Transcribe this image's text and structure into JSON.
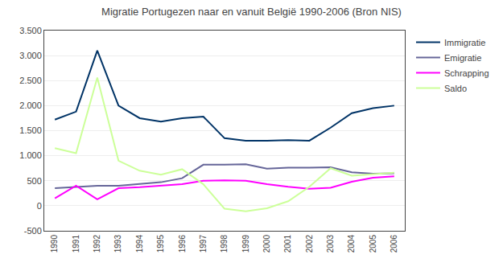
{
  "chart_data": {
    "type": "line",
    "title": "Migratie Portugezen naar en vanuit België 1990-2006 (Bron NIS)",
    "x": [
      1990,
      1991,
      1992,
      1993,
      1994,
      1995,
      1996,
      1997,
      1998,
      1999,
      2000,
      2001,
      2002,
      2003,
      2004,
      2005,
      2006
    ],
    "series": [
      {
        "name": "Immigratie",
        "color": "#003366",
        "values": [
          1720,
          1880,
          3100,
          2000,
          1750,
          1680,
          1750,
          1780,
          1350,
          1300,
          1300,
          1310,
          1300,
          1560,
          1850,
          1950,
          2000
        ]
      },
      {
        "name": "Emigratie",
        "color": "#666699",
        "values": [
          350,
          380,
          400,
          400,
          430,
          470,
          550,
          820,
          820,
          830,
          740,
          760,
          760,
          770,
          670,
          640,
          650
        ]
      },
      {
        "name": "Schrapping",
        "color": "#ff00ff",
        "values": [
          150,
          400,
          130,
          350,
          370,
          400,
          430,
          500,
          510,
          500,
          430,
          380,
          340,
          360,
          480,
          560,
          590
        ]
      },
      {
        "name": "Saldo",
        "color": "#ccff99",
        "values": [
          1150,
          1050,
          2560,
          900,
          700,
          620,
          730,
          430,
          -60,
          -110,
          -50,
          90,
          380,
          750,
          600,
          630,
          660
        ]
      }
    ],
    "xlim": [
      1989.5,
      2006.5
    ],
    "xticks": [
      1990,
      1991,
      1992,
      1993,
      1994,
      1995,
      1996,
      1997,
      1998,
      1999,
      2000,
      2001,
      2002,
      2003,
      2004,
      2005,
      2006
    ],
    "ylim": [
      -500,
      3500
    ],
    "yticks": [
      -500,
      0,
      500,
      {
        "value": 1000,
        "label": "1.000"
      },
      {
        "value": 1500,
        "label": "1.500"
      },
      {
        "value": 2000,
        "label": "2.000"
      },
      {
        "value": 2500,
        "label": "2.500"
      },
      {
        "value": 3000,
        "label": "3.000"
      },
      {
        "value": 3500,
        "label": "3.500"
      }
    ],
    "grid": "y",
    "legend": "right"
  }
}
